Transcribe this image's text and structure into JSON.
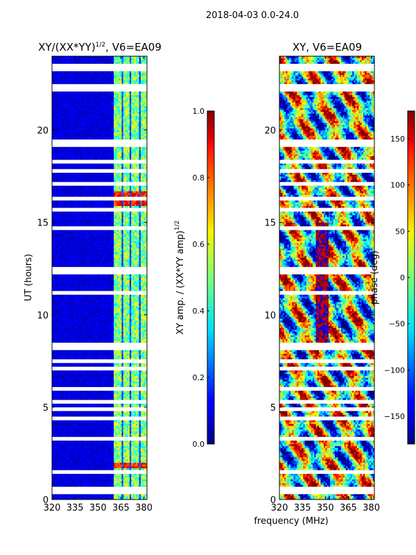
{
  "figure": {
    "suptitle": "2018-04-03 0.0-24.0",
    "shared_xlabel": "frequency (MHz)"
  },
  "chart_data": [
    {
      "type": "heatmap",
      "title_main": "XY/(XX*YY)",
      "title_sup": "1/2",
      "title_tail": ", V6=EA09",
      "ylabel": "UT (hours)",
      "x_ticks": [
        320,
        335,
        350,
        365,
        380
      ],
      "y_ticks": [
        0,
        5,
        10,
        15,
        20
      ],
      "xlim": [
        320,
        382
      ],
      "ylim": [
        0,
        24
      ],
      "colormap": "jet",
      "colorbar": {
        "label_main": "XY amp. / (XX*YY amp)",
        "label_sup": "1/2",
        "ticks": [
          "0.0",
          "0.2",
          "0.4",
          "0.6",
          "0.8",
          "1.0"
        ],
        "range": [
          0.0,
          1.0
        ]
      },
      "gaps_ut": [
        0.4,
        0.6,
        1.5,
        3.3,
        4.4,
        4.9,
        5.3,
        6.0,
        7.1,
        7.5,
        8.2,
        8.4,
        11.2,
        12.3,
        12.5,
        14.7,
        15.7,
        16.3,
        17.1,
        17.8,
        18.3,
        19.2,
        19.4,
        22.2,
        22.4,
        23.3,
        23.5
      ],
      "bright_band_ut": [
        [
          1.7,
          2.0
        ],
        [
          15.9,
          16.7
        ]
      ],
      "channel_edge_mhz": 360
    },
    {
      "type": "heatmap",
      "title_main": "XY, V6=EA09",
      "title_sup": "",
      "title_tail": "",
      "ylabel": "",
      "x_ticks": [
        320,
        335,
        350,
        365,
        380
      ],
      "y_ticks": [
        0,
        5,
        10,
        15,
        20
      ],
      "xlim": [
        320,
        382
      ],
      "ylim": [
        0,
        24
      ],
      "colormap": "jet",
      "colorbar": {
        "label_main": "phase (deg)",
        "label_sup": "",
        "ticks": [
          "150",
          "100",
          "50",
          "0",
          "−50",
          "−100",
          "−150"
        ],
        "range": [
          -180,
          180
        ]
      },
      "gaps_ut": [
        0.4,
        0.6,
        1.5,
        3.3,
        4.4,
        4.9,
        5.3,
        6.0,
        7.1,
        7.5,
        8.2,
        8.4,
        11.2,
        12.3,
        12.5,
        14.7,
        15.7,
        16.3,
        17.1,
        17.8,
        18.3,
        19.2,
        19.4,
        22.2,
        22.4,
        23.3,
        23.5
      ]
    }
  ]
}
